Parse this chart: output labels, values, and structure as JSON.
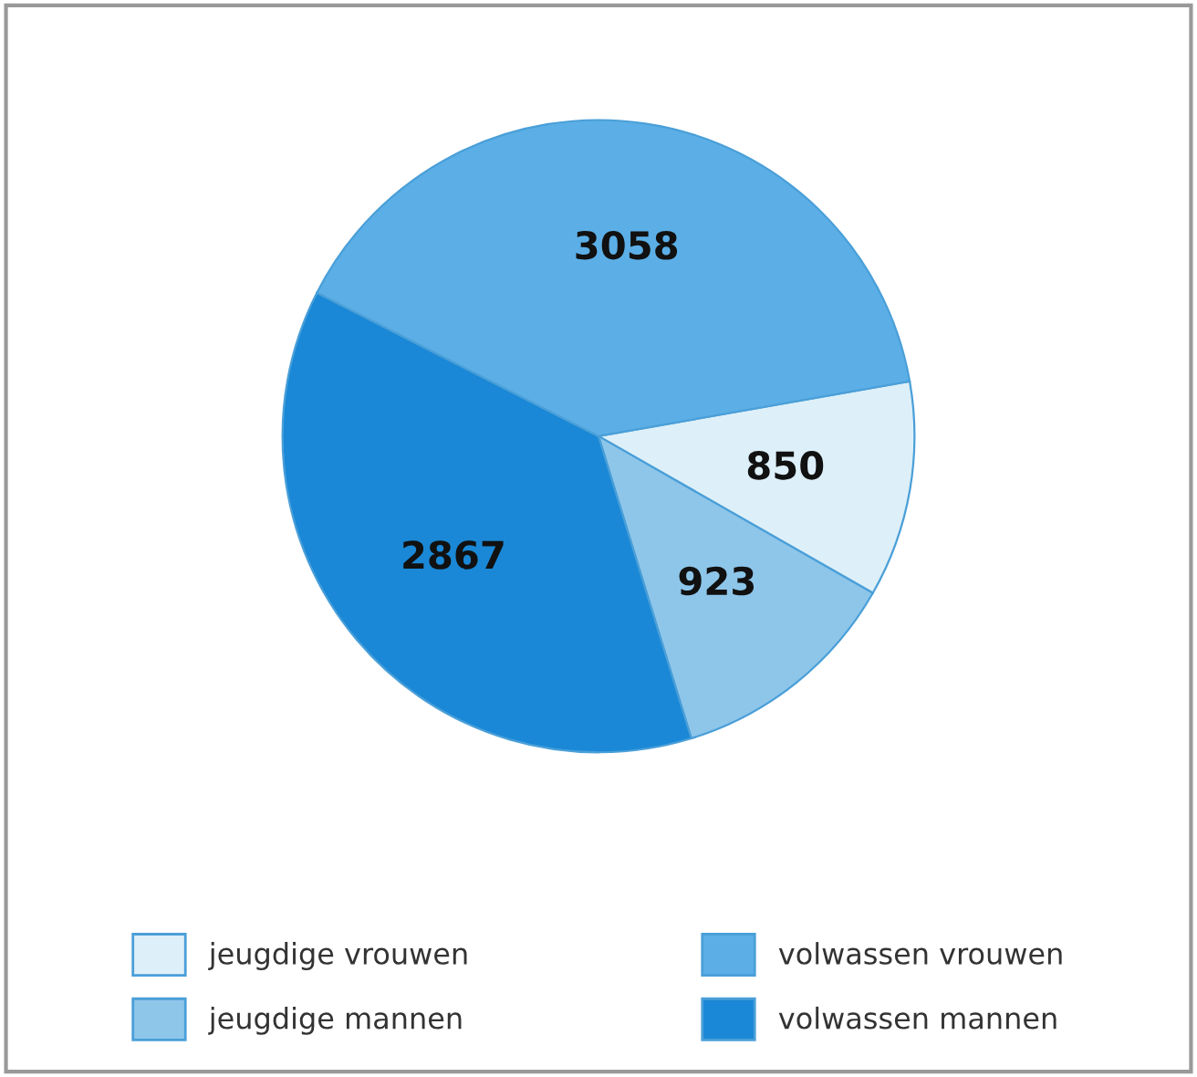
{
  "chart_data": {
    "type": "pie",
    "categories": [
      "jeugdige vrouwen",
      "jeugdige mannen",
      "volwassen mannen",
      "volwassen vrouwen"
    ],
    "values": [
      850,
      923,
      2867,
      3058
    ],
    "colors": [
      "#ddeff8",
      "#8ec6ea",
      "#1a88d6",
      "#5cafe6"
    ],
    "data_labels": true,
    "legend": "bottom"
  }
}
